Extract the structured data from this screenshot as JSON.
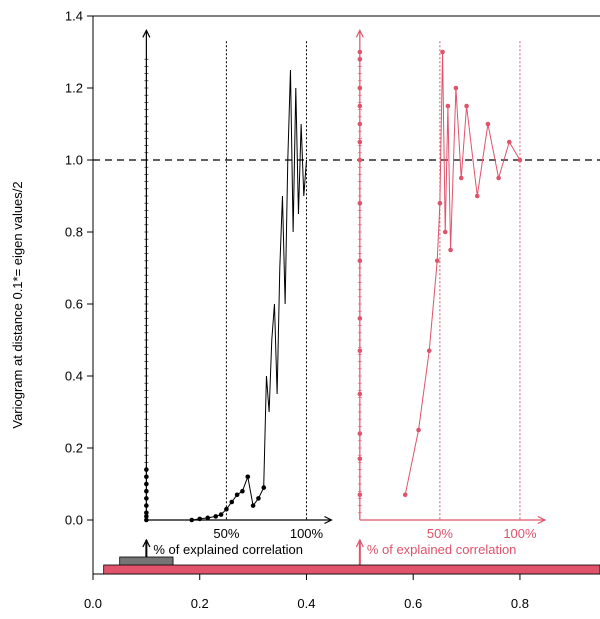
{
  "chart_data": {
    "type": "line",
    "title": "",
    "xlabel": "",
    "ylabel": "Variogram at distance 0.1*= eigen values/2",
    "xlim": [
      0.0,
      0.95
    ],
    "ylim": [
      -0.15,
      1.4
    ],
    "x_ticks": [
      0.0,
      0.2,
      0.4,
      0.6,
      0.8
    ],
    "x_tick_labels": [
      "0.0",
      "0.2",
      "0.4",
      "0.6",
      "0.8"
    ],
    "y_ticks": [
      0.0,
      0.2,
      0.4,
      0.6,
      0.8,
      1.0,
      1.2,
      1.4
    ],
    "y_tick_labels": [
      "0.0",
      "0.2",
      "0.4",
      "0.6",
      "0.8",
      "1.0",
      "1.2",
      "1.4"
    ],
    "reference_line": {
      "y": 1.0,
      "style": "dashed"
    },
    "colors": {
      "black": "#000000",
      "red": "#df536b",
      "gray_box": "#757575"
    },
    "panels": [
      {
        "color": "#000000",
        "origin_x": 0.1,
        "pct_lines_x": [
          0.25,
          0.4
        ],
        "pct_labels": [
          "50%",
          "100%"
        ],
        "axis_label": "% of explained correlation",
        "series": {
          "points_x": [
            0.1,
            0.1,
            0.1,
            0.1,
            0.1,
            0.1,
            0.1,
            0.1,
            0.1,
            0.185,
            0.2,
            0.215,
            0.23,
            0.24,
            0.25,
            0.26,
            0.27,
            0.28,
            0.29,
            0.3,
            0.31,
            0.32
          ],
          "points_y": [
            0.0,
            0.01,
            0.02,
            0.04,
            0.06,
            0.08,
            0.1,
            0.12,
            0.14,
            0.0,
            0.003,
            0.006,
            0.01,
            0.015,
            0.03,
            0.05,
            0.07,
            0.08,
            0.12,
            0.04,
            0.06,
            0.09
          ],
          "tail_x": [
            0.32,
            0.325,
            0.33,
            0.335,
            0.34,
            0.345,
            0.35,
            0.355,
            0.36,
            0.365,
            0.37,
            0.375,
            0.38,
            0.385,
            0.39,
            0.395,
            0.4
          ],
          "tail_y": [
            0.1,
            0.4,
            0.3,
            0.5,
            0.6,
            0.35,
            0.7,
            0.9,
            0.6,
            1.0,
            1.25,
            0.8,
            1.2,
            0.85,
            1.1,
            0.9,
            1.0
          ]
        }
      },
      {
        "color": "#df536b",
        "origin_x": 0.5,
        "pct_lines_x": [
          0.65,
          0.8
        ],
        "pct_labels": [
          "50%",
          "100%"
        ],
        "axis_label": "% of explained correlation",
        "series": {
          "points_x": [
            0.585,
            0.61,
            0.63,
            0.645,
            0.65,
            0.655,
            0.66,
            0.665,
            0.67,
            0.68,
            0.69,
            0.7,
            0.72,
            0.74,
            0.76,
            0.78,
            0.8
          ],
          "points_y": [
            0.07,
            0.25,
            0.47,
            0.72,
            0.88,
            1.3,
            0.8,
            1.15,
            0.75,
            1.2,
            0.95,
            1.15,
            0.9,
            1.1,
            0.95,
            1.05,
            1.0
          ]
        },
        "axis_points_y": [
          0.07,
          0.17,
          0.24,
          0.35,
          0.47,
          0.56,
          0.72,
          0.88,
          1.0,
          1.05,
          1.1,
          1.15,
          1.2,
          1.28,
          1.3
        ]
      }
    ],
    "bottom_bars": [
      {
        "x0": 0.05,
        "x1": 0.15,
        "color": "#757575"
      },
      {
        "x0": 0.02,
        "x1": 0.95,
        "color": "#df536b"
      }
    ]
  }
}
